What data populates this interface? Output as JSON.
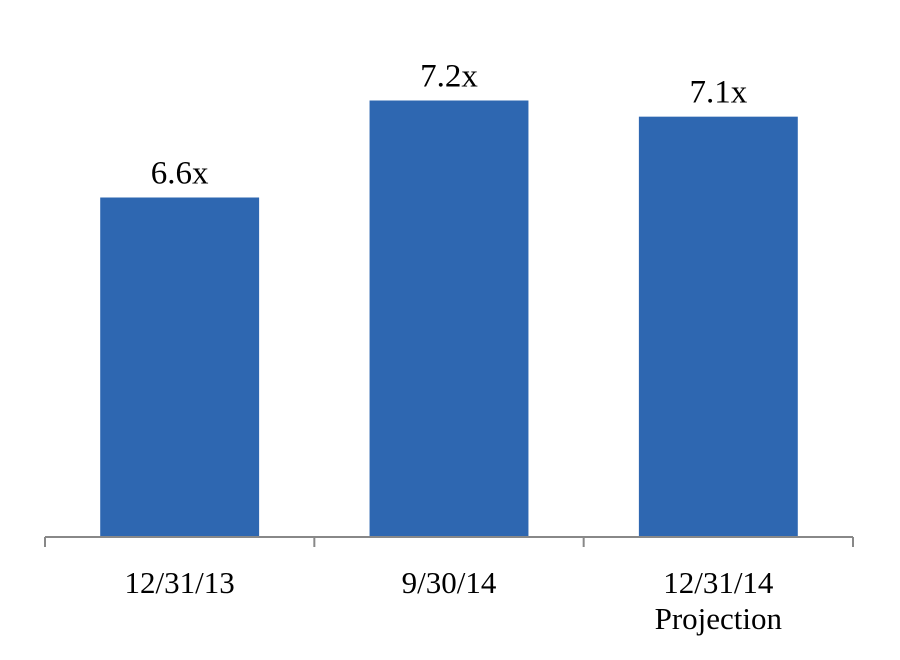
{
  "chart_data": {
    "type": "bar",
    "categories": [
      "12/31/13",
      "9/30/14",
      "12/31/14 Projection"
    ],
    "values": [
      6.6,
      7.2,
      7.1
    ],
    "value_labels": [
      "6.6x",
      "7.2x",
      "7.1x"
    ],
    "color": "#2e67b1",
    "ylim": [
      4.5,
      7.5
    ]
  }
}
